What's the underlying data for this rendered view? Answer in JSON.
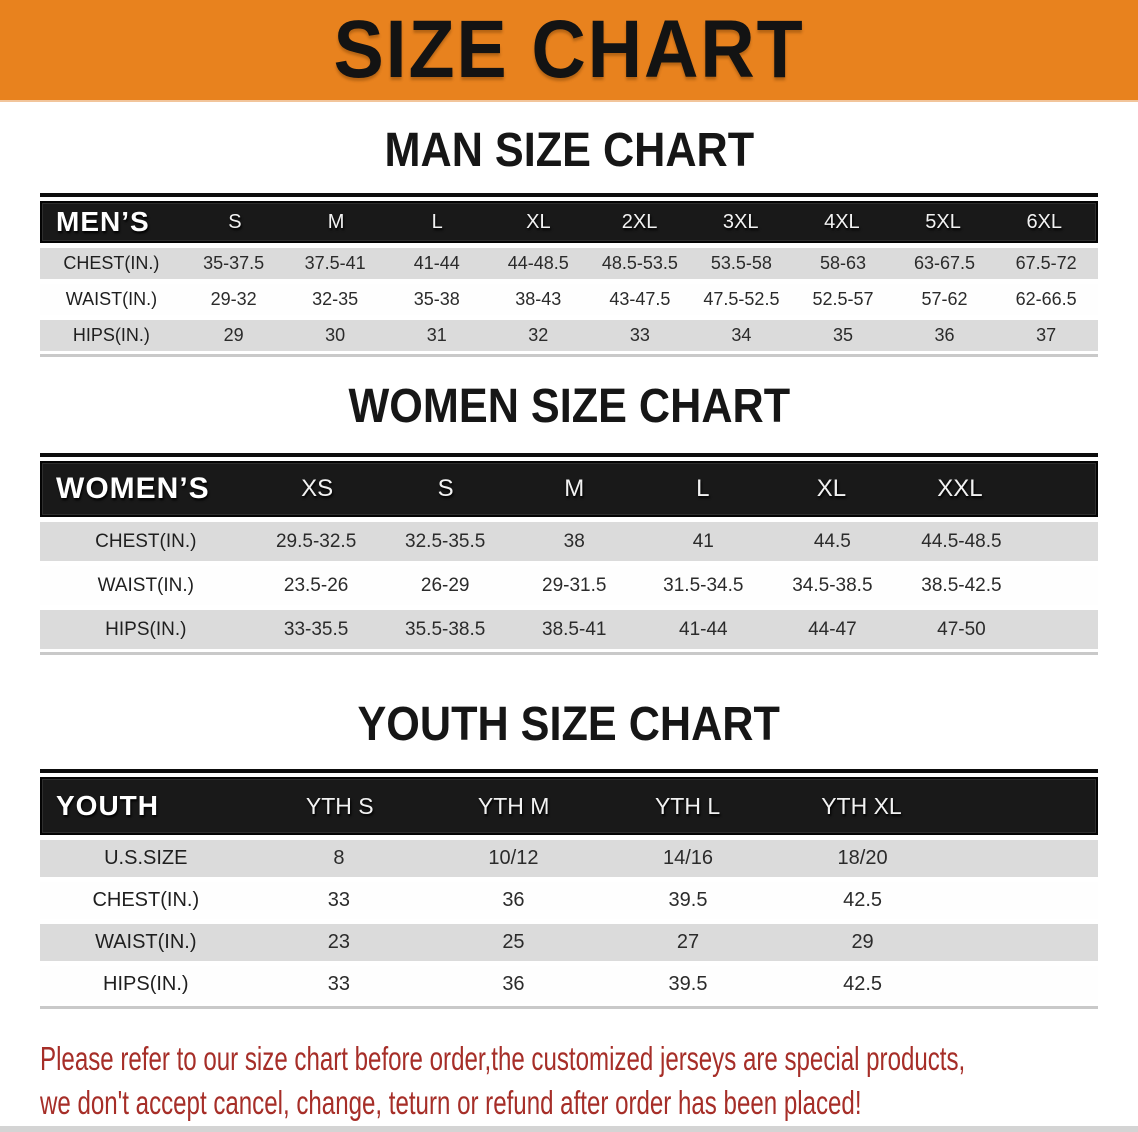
{
  "banner": {
    "title": "SIZE CHART",
    "background_color": "#E8821E"
  },
  "sections": [
    {
      "id": "mens",
      "heading": "MAN SIZE CHART",
      "corner_label": "MEN’S",
      "columns": [
        "S",
        "M",
        "L",
        "XL",
        "2XL",
        "3XL",
        "4XL",
        "5XL",
        "6XL"
      ],
      "rows": [
        {
          "label": "CHEST(IN.)",
          "values": [
            "35-37.5",
            "37.5-41",
            "41-44",
            "44-48.5",
            "48.5-53.5",
            "53.5-58",
            "58-63",
            "63-67.5",
            "67.5-72"
          ]
        },
        {
          "label": "WAIST(IN.)",
          "values": [
            "29-32",
            "32-35",
            "35-38",
            "38-43",
            "43-47.5",
            "47.5-52.5",
            "52.5-57",
            "57-62",
            "62-66.5"
          ]
        },
        {
          "label": "HIPS(IN.)",
          "values": [
            "29",
            "30",
            "31",
            "32",
            "33",
            "34",
            "35",
            "36",
            "37"
          ]
        }
      ]
    },
    {
      "id": "womens",
      "heading": "WOMEN SIZE CHART",
      "corner_label": "WOMEN’S",
      "columns": [
        "XS",
        "S",
        "M",
        "L",
        "XL",
        "XXL"
      ],
      "rows": [
        {
          "label": "CHEST(IN.)",
          "values": [
            "29.5-32.5",
            "32.5-35.5",
            "38",
            "41",
            "44.5",
            "44.5-48.5"
          ]
        },
        {
          "label": "WAIST(IN.)",
          "values": [
            "23.5-26",
            "26-29",
            "29-31.5",
            "31.5-34.5",
            "34.5-38.5",
            "38.5-42.5"
          ]
        },
        {
          "label": "HIPS(IN.)",
          "values": [
            "33-35.5",
            "35.5-38.5",
            "38.5-41",
            "41-44",
            "44-47",
            "47-50"
          ]
        }
      ]
    },
    {
      "id": "youth",
      "heading": "YOUTH SIZE CHART",
      "corner_label": "YOUTH",
      "columns": [
        "YTH S",
        "YTH M",
        "YTH L",
        "YTH XL"
      ],
      "rows": [
        {
          "label": "U.S.SIZE",
          "values": [
            "8",
            "10/12",
            "14/16",
            "18/20"
          ]
        },
        {
          "label": "CHEST(IN.)",
          "values": [
            "33",
            "36",
            "39.5",
            "42.5"
          ]
        },
        {
          "label": "WAIST(IN.)",
          "values": [
            "23",
            "25",
            "27",
            "29"
          ]
        },
        {
          "label": "HIPS(IN.)",
          "values": [
            "33",
            "36",
            "39.5",
            "42.5"
          ]
        }
      ]
    }
  ],
  "footer_note": {
    "line1": "Please refer to our size chart before order,the customized jerseys are special products,",
    "line2": "we don't accept cancel, change, teturn or refund after order has been placed!",
    "color": "#A62E28"
  },
  "colors": {
    "banner_orange": "#E8821E",
    "header_bar_black": "#191919",
    "row_gray": "#DBDBDB",
    "row_white": "#FEFEFE",
    "note_red": "#A62E28"
  }
}
